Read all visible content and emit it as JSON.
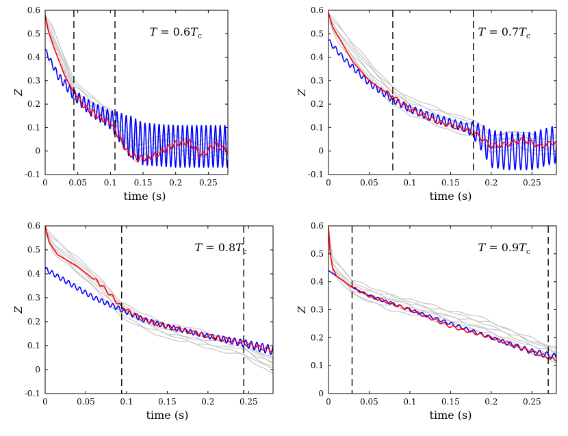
{
  "chart_data": [
    {
      "type": "line",
      "annotation": {
        "symbol": "T",
        "eq": " = ",
        "coef": "0.6",
        "base": "T",
        "sub": "c"
      },
      "xlabel": "time (s)",
      "ylabel": "Z",
      "xlim": [
        0,
        0.28
      ],
      "ylim": [
        -0.1,
        0.6
      ],
      "xticks": [
        0,
        0.05,
        0.1,
        0.15,
        0.2,
        0.25
      ],
      "xtick_labels": [
        "0",
        "0.05",
        "0.1",
        "0.15",
        "0.2",
        "0.25"
      ],
      "yticks": [
        -0.1,
        0,
        0.1,
        0.2,
        0.3,
        0.4,
        0.5,
        0.6
      ],
      "ytick_labels": [
        "-0.1",
        "0",
        "0.1",
        "0.2",
        "0.3",
        "0.4",
        "0.5",
        "0.6"
      ],
      "vlines": [
        0.044,
        0.107
      ],
      "series": [
        {
          "name": "blue",
          "color": "#0000ff",
          "x": [
            0,
            0.02,
            0.044,
            0.07,
            0.09,
            0.107,
            0.125,
            0.15,
            0.2,
            0.25,
            0.28
          ],
          "y": [
            0.43,
            0.32,
            0.24,
            0.18,
            0.15,
            0.12,
            0.07,
            0.03,
            0.02,
            0.02,
            0.02
          ],
          "osc": {
            "start": 0.0,
            "amp": [
              0.01,
              0.04,
              0.09
            ],
            "amp_x": [
              0,
              0.1,
              0.13
            ],
            "period": 0.0072
          }
        },
        {
          "name": "red",
          "color": "#ff0000",
          "x": [
            0,
            0.005,
            0.015,
            0.03,
            0.044,
            0.06,
            0.08,
            0.1,
            0.107,
            0.115,
            0.125,
            0.14,
            0.16,
            0.18,
            0.2,
            0.22,
            0.24,
            0.26,
            0.28
          ],
          "y": [
            0.58,
            0.51,
            0.43,
            0.32,
            0.25,
            0.19,
            0.15,
            0.12,
            0.09,
            0.05,
            0.0,
            -0.03,
            -0.03,
            0.0,
            0.03,
            0.04,
            -0.02,
            0.03,
            0.0
          ],
          "osc": {
            "start": 0.05,
            "amp": [
              0.012,
              0.012
            ],
            "amp_x": [
              0,
              0.28
            ],
            "period": 0.0105
          }
        },
        {
          "name": "gray",
          "color": "#c9c9c9",
          "x": [
            0,
            0.01,
            0.03,
            0.044,
            0.07,
            0.1,
            0.107,
            0.12,
            0.14,
            0.17,
            0.2,
            0.23,
            0.26,
            0.28
          ],
          "y": [
            0.56,
            0.5,
            0.36,
            0.26,
            0.2,
            0.14,
            0.12,
            0.05,
            -0.01,
            0.02,
            0.03,
            0.0,
            0.02,
            0.0
          ],
          "variants": 7,
          "spread": 0.035
        }
      ]
    },
    {
      "type": "line",
      "annotation": {
        "symbol": "T",
        "eq": " = ",
        "coef": "0.7",
        "base": "T",
        "sub": "c"
      },
      "xlabel": "time (s)",
      "ylabel": "Z",
      "xlim": [
        0,
        0.28
      ],
      "ylim": [
        -0.1,
        0.6
      ],
      "xticks": [
        0,
        0.05,
        0.1,
        0.15,
        0.2,
        0.25
      ],
      "xtick_labels": [
        "0",
        "0.05",
        "0.1",
        "0.15",
        "0.2",
        "0.25"
      ],
      "yticks": [
        -0.1,
        0,
        0.1,
        0.2,
        0.3,
        0.4,
        0.5,
        0.6
      ],
      "ytick_labels": [
        "-0.1",
        "0",
        "0.1",
        "0.2",
        "0.3",
        "0.4",
        "0.5",
        "0.6"
      ],
      "vlines": [
        0.079,
        0.178
      ],
      "series": [
        {
          "name": "blue",
          "color": "#0000ff",
          "x": [
            0,
            0.02,
            0.05,
            0.079,
            0.1,
            0.13,
            0.16,
            0.178,
            0.19,
            0.2,
            0.22,
            0.25,
            0.28
          ],
          "y": [
            0.47,
            0.39,
            0.29,
            0.22,
            0.18,
            0.14,
            0.11,
            0.09,
            0.05,
            0.01,
            0.0,
            0.0,
            0.03
          ],
          "osc": {
            "start": 0.0,
            "amp": [
              0.01,
              0.02,
              0.08
            ],
            "amp_x": [
              0,
              0.17,
              0.2
            ],
            "period": 0.007
          }
        },
        {
          "name": "red",
          "color": "#ff0000",
          "x": [
            0,
            0.005,
            0.015,
            0.03,
            0.05,
            0.079,
            0.1,
            0.13,
            0.16,
            0.178,
            0.19,
            0.2,
            0.22,
            0.24,
            0.26,
            0.28
          ],
          "y": [
            0.59,
            0.53,
            0.47,
            0.38,
            0.3,
            0.23,
            0.18,
            0.13,
            0.1,
            0.08,
            0.05,
            0.02,
            0.03,
            0.05,
            0.02,
            0.04
          ],
          "osc": {
            "start": 0.07,
            "amp": [
              0.01,
              0.01
            ],
            "amp_x": [
              0,
              0.28
            ],
            "period": 0.011
          }
        },
        {
          "name": "gray",
          "color": "#c9c9c9",
          "x": [
            0,
            0.01,
            0.03,
            0.06,
            0.079,
            0.1,
            0.13,
            0.16,
            0.178,
            0.2,
            0.23,
            0.26,
            0.28
          ],
          "y": [
            0.57,
            0.51,
            0.42,
            0.3,
            0.24,
            0.19,
            0.15,
            0.11,
            0.09,
            0.03,
            0.05,
            0.02,
            0.03
          ],
          "variants": 7,
          "spread": 0.035
        }
      ]
    },
    {
      "type": "line",
      "annotation": {
        "symbol": "T",
        "eq": " = ",
        "coef": "0.8",
        "base": "T",
        "sub": "c"
      },
      "xlabel": "time (s)",
      "ylabel": "Z",
      "xlim": [
        0,
        0.28
      ],
      "ylim": [
        -0.1,
        0.6
      ],
      "xticks": [
        0,
        0.05,
        0.1,
        0.15,
        0.2,
        0.25
      ],
      "xtick_labels": [
        "0",
        "0.05",
        "0.1",
        "0.15",
        "0.2",
        "0.25"
      ],
      "yticks": [
        -0.1,
        0,
        0.1,
        0.2,
        0.3,
        0.4,
        0.5,
        0.6
      ],
      "ytick_labels": [
        "-0.1",
        "0",
        "0.1",
        "0.2",
        "0.3",
        "0.4",
        "0.5",
        "0.6"
      ],
      "vlines": [
        0.094,
        0.244
      ],
      "series": [
        {
          "name": "blue",
          "color": "#0000ff",
          "x": [
            0,
            0.03,
            0.06,
            0.094,
            0.12,
            0.15,
            0.2,
            0.244,
            0.28
          ],
          "y": [
            0.42,
            0.36,
            0.3,
            0.25,
            0.21,
            0.18,
            0.14,
            0.11,
            0.08
          ],
          "osc": {
            "start": 0.0,
            "amp": [
              0.01,
              0.01,
              0.02
            ],
            "amp_x": [
              0,
              0.2,
              0.28
            ],
            "period": 0.0068
          }
        },
        {
          "name": "red",
          "color": "#ff0000",
          "x": [
            0,
            0.005,
            0.015,
            0.04,
            0.07,
            0.094,
            0.12,
            0.15,
            0.2,
            0.244,
            0.28
          ],
          "y": [
            0.6,
            0.53,
            0.48,
            0.43,
            0.35,
            0.26,
            0.21,
            0.18,
            0.14,
            0.11,
            0.08
          ],
          "osc": {
            "start": 0.06,
            "amp": [
              0.008,
              0.008
            ],
            "amp_x": [
              0,
              0.28
            ],
            "period": 0.01
          }
        },
        {
          "name": "gray",
          "color": "#c9c9c9",
          "x": [
            0,
            0.01,
            0.04,
            0.07,
            0.094,
            0.12,
            0.15,
            0.2,
            0.244,
            0.26,
            0.28
          ],
          "y": [
            0.58,
            0.52,
            0.43,
            0.34,
            0.25,
            0.2,
            0.16,
            0.12,
            0.09,
            0.05,
            0.02
          ],
          "variants": 7,
          "spread": 0.03
        }
      ]
    },
    {
      "type": "line",
      "annotation": {
        "symbol": "T",
        "eq": " = ",
        "coef": "0.9",
        "base": "T",
        "sub": "c"
      },
      "xlabel": "time (s)",
      "ylabel": "Z",
      "xlim": [
        0,
        0.28
      ],
      "ylim": [
        0,
        0.6
      ],
      "xticks": [
        0,
        0.05,
        0.1,
        0.15,
        0.2,
        0.25
      ],
      "xtick_labels": [
        "0",
        "0.05",
        "0.1",
        "0.15",
        "0.2",
        "0.25"
      ],
      "yticks": [
        0,
        0.1,
        0.2,
        0.3,
        0.4,
        0.5,
        0.6
      ],
      "ytick_labels": [
        "0",
        "0.1",
        "0.2",
        "0.3",
        "0.4",
        "0.5",
        "0.6"
      ],
      "vlines": [
        0.029,
        0.27
      ],
      "series": [
        {
          "name": "blue",
          "color": "#0000ff",
          "x": [
            0,
            0.01,
            0.029,
            0.05,
            0.1,
            0.15,
            0.2,
            0.25,
            0.28
          ],
          "y": [
            0.44,
            0.42,
            0.38,
            0.35,
            0.3,
            0.25,
            0.2,
            0.15,
            0.13
          ],
          "osc": {
            "start": 0.05,
            "amp": [
              0.004,
              0.006,
              0.012
            ],
            "amp_x": [
              0,
              0.2,
              0.28
            ],
            "period": 0.009
          }
        },
        {
          "name": "red",
          "color": "#ff0000",
          "x": [
            0,
            0.002,
            0.005,
            0.01,
            0.029,
            0.05,
            0.1,
            0.15,
            0.2,
            0.25,
            0.28
          ],
          "y": [
            0.6,
            0.5,
            0.45,
            0.42,
            0.38,
            0.35,
            0.3,
            0.24,
            0.2,
            0.15,
            0.12
          ],
          "osc": {
            "start": 0.03,
            "amp": [
              0.005,
              0.005
            ],
            "amp_x": [
              0,
              0.28
            ],
            "period": 0.011
          }
        },
        {
          "name": "gray",
          "color": "#c9c9c9",
          "x": [
            0,
            0.005,
            0.029,
            0.05,
            0.1,
            0.15,
            0.2,
            0.25,
            0.28
          ],
          "y": [
            0.58,
            0.46,
            0.38,
            0.35,
            0.31,
            0.27,
            0.23,
            0.17,
            0.14
          ],
          "variants": 7,
          "spread": 0.025
        }
      ]
    }
  ]
}
